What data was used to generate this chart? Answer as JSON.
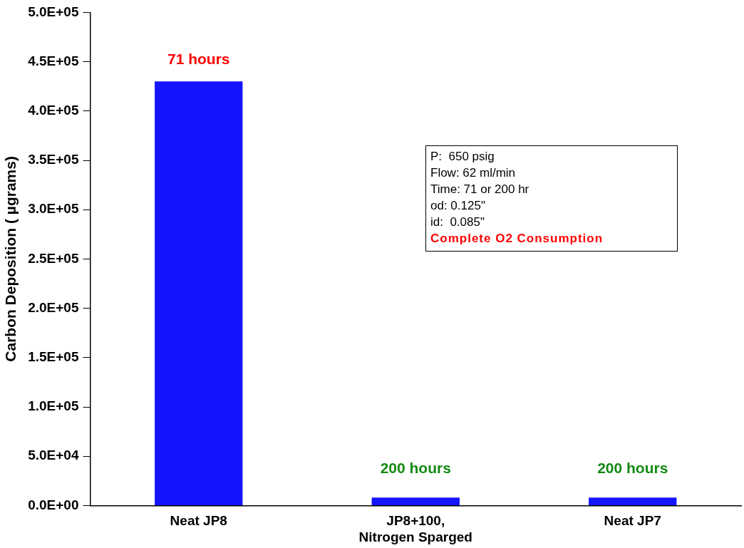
{
  "chart_data": {
    "type": "bar",
    "ylabel": "Carbon Deposition ( µgrams)",
    "categories": [
      "Neat JP8",
      "JP8+100, Nitrogen Sparged",
      "Neat JP7"
    ],
    "values": [
      430000,
      8000,
      8000
    ],
    "color": "#1414ff",
    "ylim": [
      0,
      500000
    ],
    "yticks": [
      {
        "value": 0,
        "label": "0.0E+00"
      },
      {
        "value": 50000,
        "label": "5.0E+04"
      },
      {
        "value": 100000,
        "label": "1.0E+05"
      },
      {
        "value": 150000,
        "label": "1.5E+05"
      },
      {
        "value": 200000,
        "label": "2.0E+05"
      },
      {
        "value": 250000,
        "label": "2.5E+05"
      },
      {
        "value": 300000,
        "label": "3.0E+05"
      },
      {
        "value": 350000,
        "label": "3.5E+05"
      },
      {
        "value": 400000,
        "label": "4.0E+05"
      },
      {
        "value": 450000,
        "label": "4.5E+05"
      },
      {
        "value": 500000,
        "label": "5.0E+05"
      }
    ],
    "annotations": [
      {
        "text": "71 hours",
        "x": "Neat JP8",
        "y": 430000
      },
      {
        "text": "200 hours",
        "x": "JP8+100, Nitrogen Sparged",
        "y": 8000
      },
      {
        "text": "200 hours",
        "x": "Neat JP7",
        "y": 8000
      },
      "P:  650 psig",
      "Flow: 62 ml/min",
      "Time: 71 or 200 hr",
      "od: 0.125\"",
      "id:  0.085\"",
      "Complete O2 Consumption"
    ],
    "grid": false,
    "legend": false
  }
}
